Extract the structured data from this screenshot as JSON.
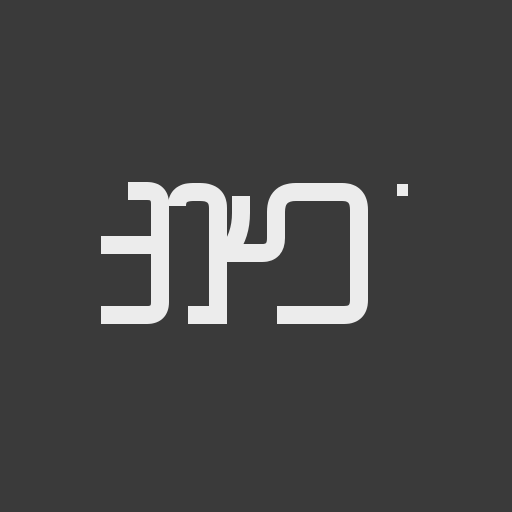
{
  "colors": {
    "background": "#3a3a3a",
    "mark": "#ececec"
  },
  "logo": {
    "icon": "abstract-glyph-logo-icon"
  }
}
